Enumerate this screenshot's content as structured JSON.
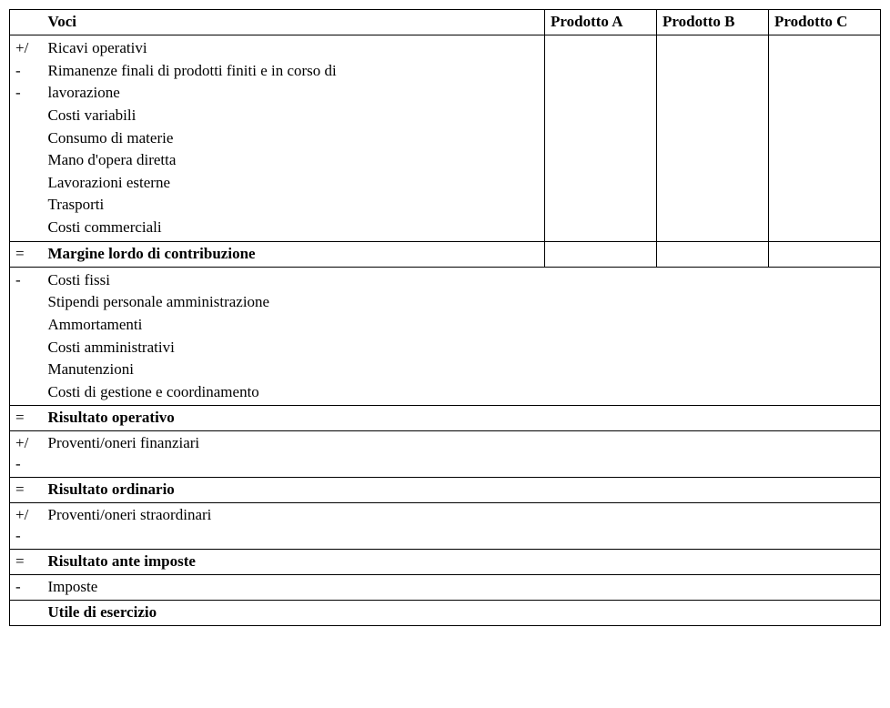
{
  "header": {
    "op": "",
    "voci": "Voci",
    "prodA": "Prodotto A",
    "prodB": "Prodotto B",
    "prodC": "Prodotto C"
  },
  "section1": {
    "ops": [
      "",
      "+/-",
      "",
      "-",
      "",
      "",
      "",
      "",
      ""
    ],
    "voci": [
      "Ricavi operativi",
      "Rimanenze finali di prodotti finiti e in corso di",
      "lavorazione",
      "Costi variabili",
      "Consumo di materie",
      "Mano d'opera diretta",
      "Lavorazioni esterne",
      "Trasporti",
      "Costi commerciali"
    ]
  },
  "margine": {
    "op": "=",
    "label": "Margine lordo di contribuzione"
  },
  "section2": {
    "ops": [
      "-",
      "",
      "",
      "",
      "",
      ""
    ],
    "voci": [
      "Costi fissi",
      "Stipendi personale amministrazione",
      "Ammortamenti",
      "Costi amministrativi",
      "Manutenzioni",
      "Costi di gestione e coordinamento"
    ]
  },
  "risOperativo": {
    "op": "=",
    "label": "Risultato operativo"
  },
  "finanziari": {
    "op": "+/-",
    "label": "Proventi/oneri finanziari"
  },
  "risOrdinario": {
    "op": "=",
    "label": "Risultato ordinario"
  },
  "straordinari": {
    "op": "+/-",
    "label": "Proventi/oneri straordinari"
  },
  "risAnteImposte": {
    "op": "=",
    "label": "Risultato ante imposte"
  },
  "imposte": {
    "op": "-",
    "label": "Imposte"
  },
  "utile": {
    "op": "",
    "label": "Utile di esercizio"
  }
}
